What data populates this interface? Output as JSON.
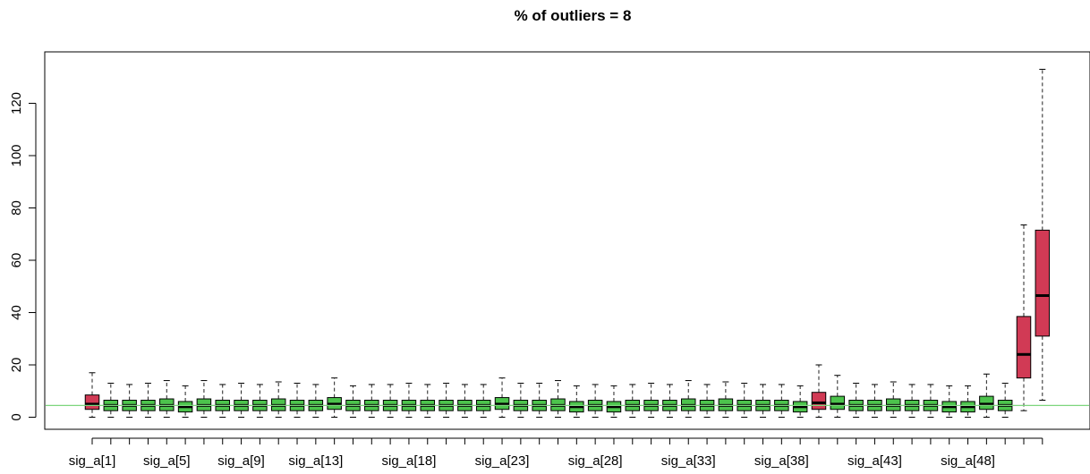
{
  "chart_data": {
    "type": "boxplot",
    "title": "% of outliers =  8",
    "xlabel": "",
    "ylabel": "",
    "ylim": [
      -2,
      137
    ],
    "y_ticks": [
      0,
      20,
      40,
      60,
      80,
      100,
      120
    ],
    "x_tick_labels": [
      {
        "index": 1,
        "label": "sig_a[1]"
      },
      {
        "index": 5,
        "label": "sig_a[5]"
      },
      {
        "index": 9,
        "label": "sig_a[9]"
      },
      {
        "index": 13,
        "label": "sig_a[13]"
      },
      {
        "index": 18,
        "label": "sig_a[18]"
      },
      {
        "index": 23,
        "label": "sig_a[23]"
      },
      {
        "index": 28,
        "label": "sig_a[28]"
      },
      {
        "index": 33,
        "label": "sig_a[33]"
      },
      {
        "index": 38,
        "label": "sig_a[38]"
      },
      {
        "index": 43,
        "label": "sig_a[43]"
      },
      {
        "index": 48,
        "label": "sig_a[48]"
      }
    ],
    "reference_line": 4.5,
    "colors": {
      "normal": "#4CC34C",
      "outlier": "#D13A55",
      "reference": "#7ED67E"
    },
    "boxes": [
      {
        "min": 0,
        "q1": 3,
        "median": 5,
        "q3": 8.5,
        "max": 17,
        "outlier": true
      },
      {
        "min": 0,
        "q1": 2.5,
        "median": 4.5,
        "q3": 6.5,
        "max": 13,
        "outlier": false
      },
      {
        "min": 0,
        "q1": 2.5,
        "median": 4.5,
        "q3": 6.5,
        "max": 12.5,
        "outlier": false
      },
      {
        "min": 0,
        "q1": 2.5,
        "median": 4.5,
        "q3": 6.5,
        "max": 13,
        "outlier": false
      },
      {
        "min": 0,
        "q1": 2.5,
        "median": 4.5,
        "q3": 7,
        "max": 14,
        "outlier": false
      },
      {
        "min": 0,
        "q1": 2,
        "median": 4,
        "q3": 6,
        "max": 12,
        "outlier": false
      },
      {
        "min": 0,
        "q1": 2.5,
        "median": 4.5,
        "q3": 7,
        "max": 14,
        "outlier": false
      },
      {
        "min": 0,
        "q1": 2.5,
        "median": 4.5,
        "q3": 6.5,
        "max": 12.5,
        "outlier": false
      },
      {
        "min": 0,
        "q1": 2.5,
        "median": 4.5,
        "q3": 6.5,
        "max": 13,
        "outlier": false
      },
      {
        "min": 0,
        "q1": 2.5,
        "median": 4.5,
        "q3": 6.5,
        "max": 12.5,
        "outlier": false
      },
      {
        "min": 0,
        "q1": 2.5,
        "median": 4.5,
        "q3": 7,
        "max": 13.5,
        "outlier": false
      },
      {
        "min": 0,
        "q1": 2.5,
        "median": 4.5,
        "q3": 6.5,
        "max": 13,
        "outlier": false
      },
      {
        "min": 0,
        "q1": 2.5,
        "median": 4.5,
        "q3": 6.5,
        "max": 12.5,
        "outlier": false
      },
      {
        "min": 0,
        "q1": 3,
        "median": 5,
        "q3": 7.5,
        "max": 15,
        "outlier": false
      },
      {
        "min": 0,
        "q1": 2.5,
        "median": 4.5,
        "q3": 6.5,
        "max": 12,
        "outlier": false
      },
      {
        "min": 0,
        "q1": 2.5,
        "median": 4.5,
        "q3": 6.5,
        "max": 12.5,
        "outlier": false
      },
      {
        "min": 0,
        "q1": 2.5,
        "median": 4.5,
        "q3": 6.5,
        "max": 12.5,
        "outlier": false
      },
      {
        "min": 0,
        "q1": 2.5,
        "median": 4.5,
        "q3": 6.5,
        "max": 13,
        "outlier": false
      },
      {
        "min": 0,
        "q1": 2.5,
        "median": 4.5,
        "q3": 6.5,
        "max": 12.5,
        "outlier": false
      },
      {
        "min": 0,
        "q1": 2.5,
        "median": 4.5,
        "q3": 6.5,
        "max": 13,
        "outlier": false
      },
      {
        "min": 0,
        "q1": 2.5,
        "median": 4.5,
        "q3": 6.5,
        "max": 12.5,
        "outlier": false
      },
      {
        "min": 0,
        "q1": 2.5,
        "median": 4.5,
        "q3": 6.5,
        "max": 12.5,
        "outlier": false
      },
      {
        "min": 0,
        "q1": 3,
        "median": 5,
        "q3": 7.5,
        "max": 15,
        "outlier": false
      },
      {
        "min": 0,
        "q1": 2.5,
        "median": 4.5,
        "q3": 6.5,
        "max": 13,
        "outlier": false
      },
      {
        "min": 0,
        "q1": 2.5,
        "median": 4.5,
        "q3": 6.5,
        "max": 13,
        "outlier": false
      },
      {
        "min": 0,
        "q1": 2.5,
        "median": 4.5,
        "q3": 7,
        "max": 14,
        "outlier": false
      },
      {
        "min": 0,
        "q1": 2,
        "median": 4,
        "q3": 6,
        "max": 12,
        "outlier": false
      },
      {
        "min": 0,
        "q1": 2.5,
        "median": 4.5,
        "q3": 6.5,
        "max": 12.5,
        "outlier": false
      },
      {
        "min": 0,
        "q1": 2,
        "median": 4,
        "q3": 6,
        "max": 12,
        "outlier": false
      },
      {
        "min": 0,
        "q1": 2.5,
        "median": 4.5,
        "q3": 6.5,
        "max": 12.5,
        "outlier": false
      },
      {
        "min": 0,
        "q1": 2.5,
        "median": 4.5,
        "q3": 6.5,
        "max": 13,
        "outlier": false
      },
      {
        "min": 0,
        "q1": 2.5,
        "median": 4.5,
        "q3": 6.5,
        "max": 12.5,
        "outlier": false
      },
      {
        "min": 0,
        "q1": 2.5,
        "median": 4.5,
        "q3": 7,
        "max": 14,
        "outlier": false
      },
      {
        "min": 0,
        "q1": 2.5,
        "median": 4.5,
        "q3": 6.5,
        "max": 12.5,
        "outlier": false
      },
      {
        "min": 0,
        "q1": 2.5,
        "median": 4.5,
        "q3": 7,
        "max": 13.5,
        "outlier": false
      },
      {
        "min": 0,
        "q1": 2.5,
        "median": 4.5,
        "q3": 6.5,
        "max": 13,
        "outlier": false
      },
      {
        "min": 0,
        "q1": 2.5,
        "median": 4.5,
        "q3": 6.5,
        "max": 12.5,
        "outlier": false
      },
      {
        "min": 0,
        "q1": 2.5,
        "median": 4.5,
        "q3": 6.5,
        "max": 12.5,
        "outlier": false
      },
      {
        "min": 0,
        "q1": 2,
        "median": 4,
        "q3": 6,
        "max": 12,
        "outlier": false
      },
      {
        "min": 0,
        "q1": 3,
        "median": 5.5,
        "q3": 9.5,
        "max": 20,
        "outlier": true
      },
      {
        "min": 0,
        "q1": 3,
        "median": 5,
        "q3": 8,
        "max": 16,
        "outlier": false
      },
      {
        "min": 0,
        "q1": 2.5,
        "median": 4.5,
        "q3": 6.5,
        "max": 13,
        "outlier": false
      },
      {
        "min": 0,
        "q1": 2.5,
        "median": 4.5,
        "q3": 6.5,
        "max": 12.5,
        "outlier": false
      },
      {
        "min": 0,
        "q1": 2.5,
        "median": 4.5,
        "q3": 7,
        "max": 13.5,
        "outlier": false
      },
      {
        "min": 0,
        "q1": 2.5,
        "median": 4.5,
        "q3": 6.5,
        "max": 12.5,
        "outlier": false
      },
      {
        "min": 0,
        "q1": 2.5,
        "median": 4.5,
        "q3": 6.5,
        "max": 12.5,
        "outlier": false
      },
      {
        "min": 0,
        "q1": 2,
        "median": 4,
        "q3": 6,
        "max": 12,
        "outlier": false
      },
      {
        "min": 0,
        "q1": 2,
        "median": 4,
        "q3": 6,
        "max": 12,
        "outlier": false
      },
      {
        "min": 0,
        "q1": 3,
        "median": 5,
        "q3": 8,
        "max": 16.5,
        "outlier": false
      },
      {
        "min": 0,
        "q1": 2.5,
        "median": 4.5,
        "q3": 6.5,
        "max": 13,
        "outlier": false
      },
      {
        "min": 2.5,
        "q1": 15,
        "median": 24,
        "q3": 38.5,
        "max": 73.5,
        "outlier": true
      },
      {
        "min": 6.5,
        "q1": 31,
        "median": 46.5,
        "q3": 71.5,
        "max": 133,
        "outlier": true
      }
    ]
  }
}
